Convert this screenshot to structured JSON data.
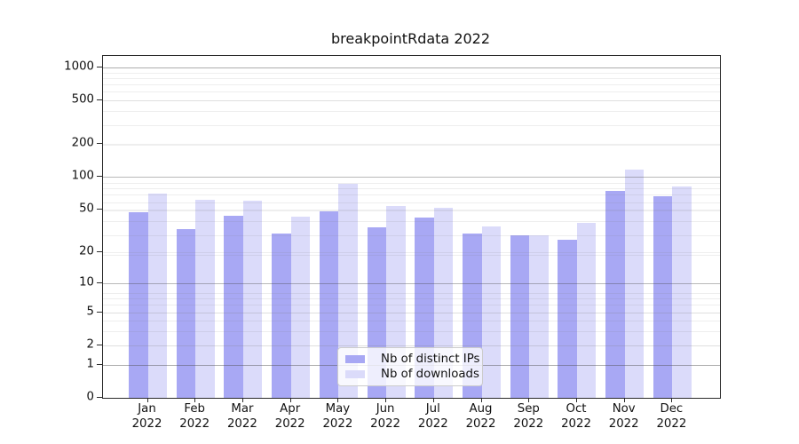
{
  "figure": {
    "title": "breakpointRdata 2022"
  },
  "chart_data": {
    "type": "bar",
    "title": "breakpointRdata 2022",
    "categories": [
      "Jan 2022",
      "Feb 2022",
      "Mar 2022",
      "Apr 2022",
      "May 2022",
      "Jun 2022",
      "Jul 2022",
      "Aug 2022",
      "Sep 2022",
      "Oct 2022",
      "Nov 2022",
      "Dec 2022"
    ],
    "series": [
      {
        "name": "Nb of distinct IPs",
        "color": "#a8a8f4",
        "values": [
          47,
          33,
          44,
          30,
          48,
          34,
          42,
          30,
          29,
          26,
          74,
          67
        ]
      },
      {
        "name": "Nb of downloads",
        "color": "#dbdbfa",
        "values": [
          70,
          62,
          61,
          43,
          86,
          54,
          52,
          35,
          29,
          38,
          116,
          82
        ]
      }
    ],
    "xlabel": "",
    "ylabel": "",
    "yscale": "log1p",
    "ylim": [
      0,
      1270
    ],
    "yticks": [
      1000,
      500,
      200,
      100,
      50,
      20,
      10,
      5,
      2,
      1,
      0
    ],
    "major_grid_values": [
      1,
      10,
      100,
      1000
    ],
    "grid": true,
    "legend_position": "lower center",
    "axis_color": "#2b2b2b",
    "background_color": "#ffffff"
  }
}
